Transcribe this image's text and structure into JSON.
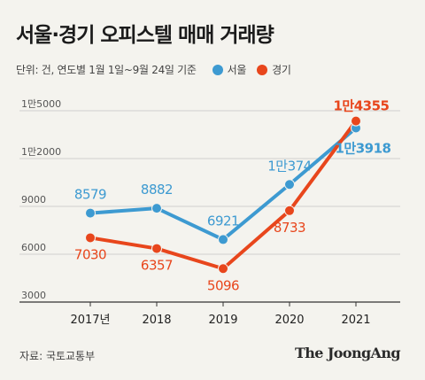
{
  "header": {
    "title": "서울·경기 오피스텔 매매 거래량",
    "subtitle": "단위: 건, 연도별 1월 1일~9월 24일 기준"
  },
  "footer": {
    "source": "자료: 국토교통부",
    "brand": "The JoongAng"
  },
  "colors": {
    "seoul": "#3d9ad1",
    "gyeonggi": "#e8461c",
    "axis": "#333333",
    "grid": "#cfcfcf"
  },
  "chart_data": {
    "type": "line",
    "categories": [
      "2017년",
      "2018",
      "2019",
      "2020",
      "2021"
    ],
    "series": [
      {
        "name": "서울",
        "values": [
          8579,
          8882,
          6921,
          10374,
          13918
        ],
        "labels": [
          "8579",
          "8882",
          "6921",
          "1만374",
          "1만3918"
        ]
      },
      {
        "name": "경기",
        "values": [
          7030,
          6357,
          5096,
          8733,
          14355
        ],
        "labels": [
          "7030",
          "6357",
          "5096",
          "8733",
          "1만4355"
        ]
      }
    ],
    "y_ticks": [
      3000,
      6000,
      9000,
      12000,
      15000
    ],
    "y_tick_labels": [
      "3000",
      "6000",
      "9000",
      "1만2000",
      "1만5000"
    ],
    "ylim": [
      3000,
      15000
    ],
    "grid": true,
    "legend_position": "top"
  }
}
